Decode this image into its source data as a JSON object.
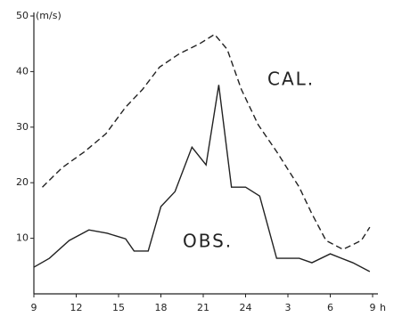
{
  "chart_data": {
    "type": "line",
    "y_label": "(m/s)",
    "x_label": "h",
    "xlim": [
      9,
      33
    ],
    "ylim": [
      0,
      50
    ],
    "xticks": [
      9,
      12,
      15,
      18,
      21,
      24,
      {
        "value": 27,
        "label": "3"
      },
      {
        "value": 30,
        "label": "6"
      },
      {
        "value": 33,
        "label": "9"
      }
    ],
    "yticks": [
      10,
      20,
      30,
      40,
      50
    ],
    "series": [
      {
        "name": "CAL.",
        "color": "#222222",
        "dash": true,
        "x": [
          9.6,
          11,
          12.6,
          14.1,
          15.5,
          16.7,
          17.9,
          19.3,
          20.8,
          21.8,
          22.7,
          23.7,
          24.9,
          26.2,
          27.8,
          28.7,
          29.7,
          30.9,
          32.2,
          32.8
        ],
        "values": [
          19.2,
          22.7,
          25.6,
          28.8,
          33.6,
          36.8,
          40.8,
          43.2,
          45.1,
          46.7,
          44,
          36.8,
          30.4,
          25.6,
          19.2,
          14.4,
          9.6,
          8,
          9.6,
          12
        ]
      },
      {
        "name": "OBS.",
        "color": "#222222",
        "dash": false,
        "x": [
          9,
          10.1,
          11.5,
          12.9,
          14.2,
          15.5,
          16.1,
          17.1,
          18,
          19,
          20.2,
          21.2,
          22.1,
          23,
          24,
          25,
          26.2,
          27.8,
          28.7,
          30,
          31.6,
          32.8
        ],
        "values": [
          4.8,
          6.4,
          9.6,
          11.5,
          10.9,
          9.9,
          7.7,
          7.7,
          15.7,
          18.4,
          26.4,
          23.2,
          37.6,
          19.2,
          19.2,
          17.6,
          6.4,
          6.4,
          5.6,
          7.2,
          5.6,
          4
        ]
      }
    ]
  }
}
